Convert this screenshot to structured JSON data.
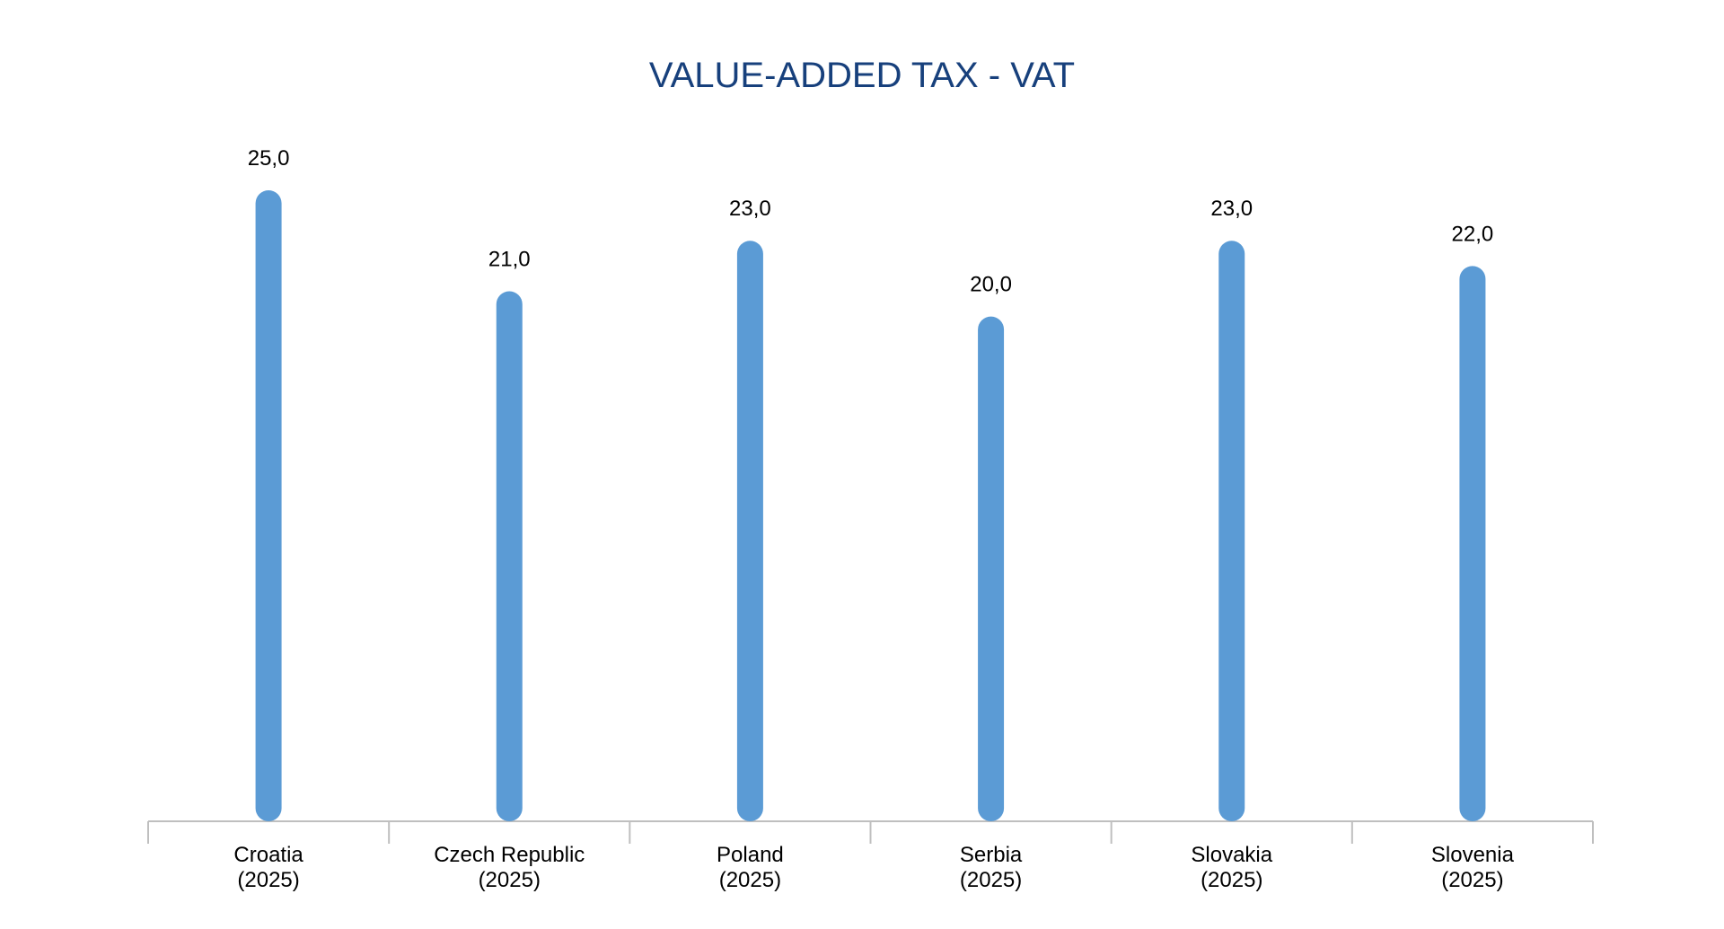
{
  "chart_data": {
    "type": "bar",
    "title": "VALUE-ADDED TAX - VAT",
    "categories": [
      {
        "name": "Croatia",
        "year": "(2025)"
      },
      {
        "name": "Czech Republic",
        "year": "(2025)"
      },
      {
        "name": "Poland",
        "year": "(2025)"
      },
      {
        "name": "Serbia",
        "year": "(2025)"
      },
      {
        "name": "Slovakia",
        "year": "(2025)"
      },
      {
        "name": "Slovenia",
        "year": "(2025)"
      }
    ],
    "values": [
      25.0,
      21.0,
      23.0,
      20.0,
      23.0,
      22.0
    ],
    "value_labels": [
      "25,0",
      "21,0",
      "23,0",
      "20,0",
      "23,0",
      "22,0"
    ],
    "xlabel": "",
    "ylabel": "",
    "ylim": [
      0,
      25
    ],
    "grid": false,
    "legend": "none",
    "colors": {
      "bar": "#5b9bd5",
      "title": "#17407c",
      "axis": "#bfbfbf",
      "text": "#000000"
    }
  }
}
